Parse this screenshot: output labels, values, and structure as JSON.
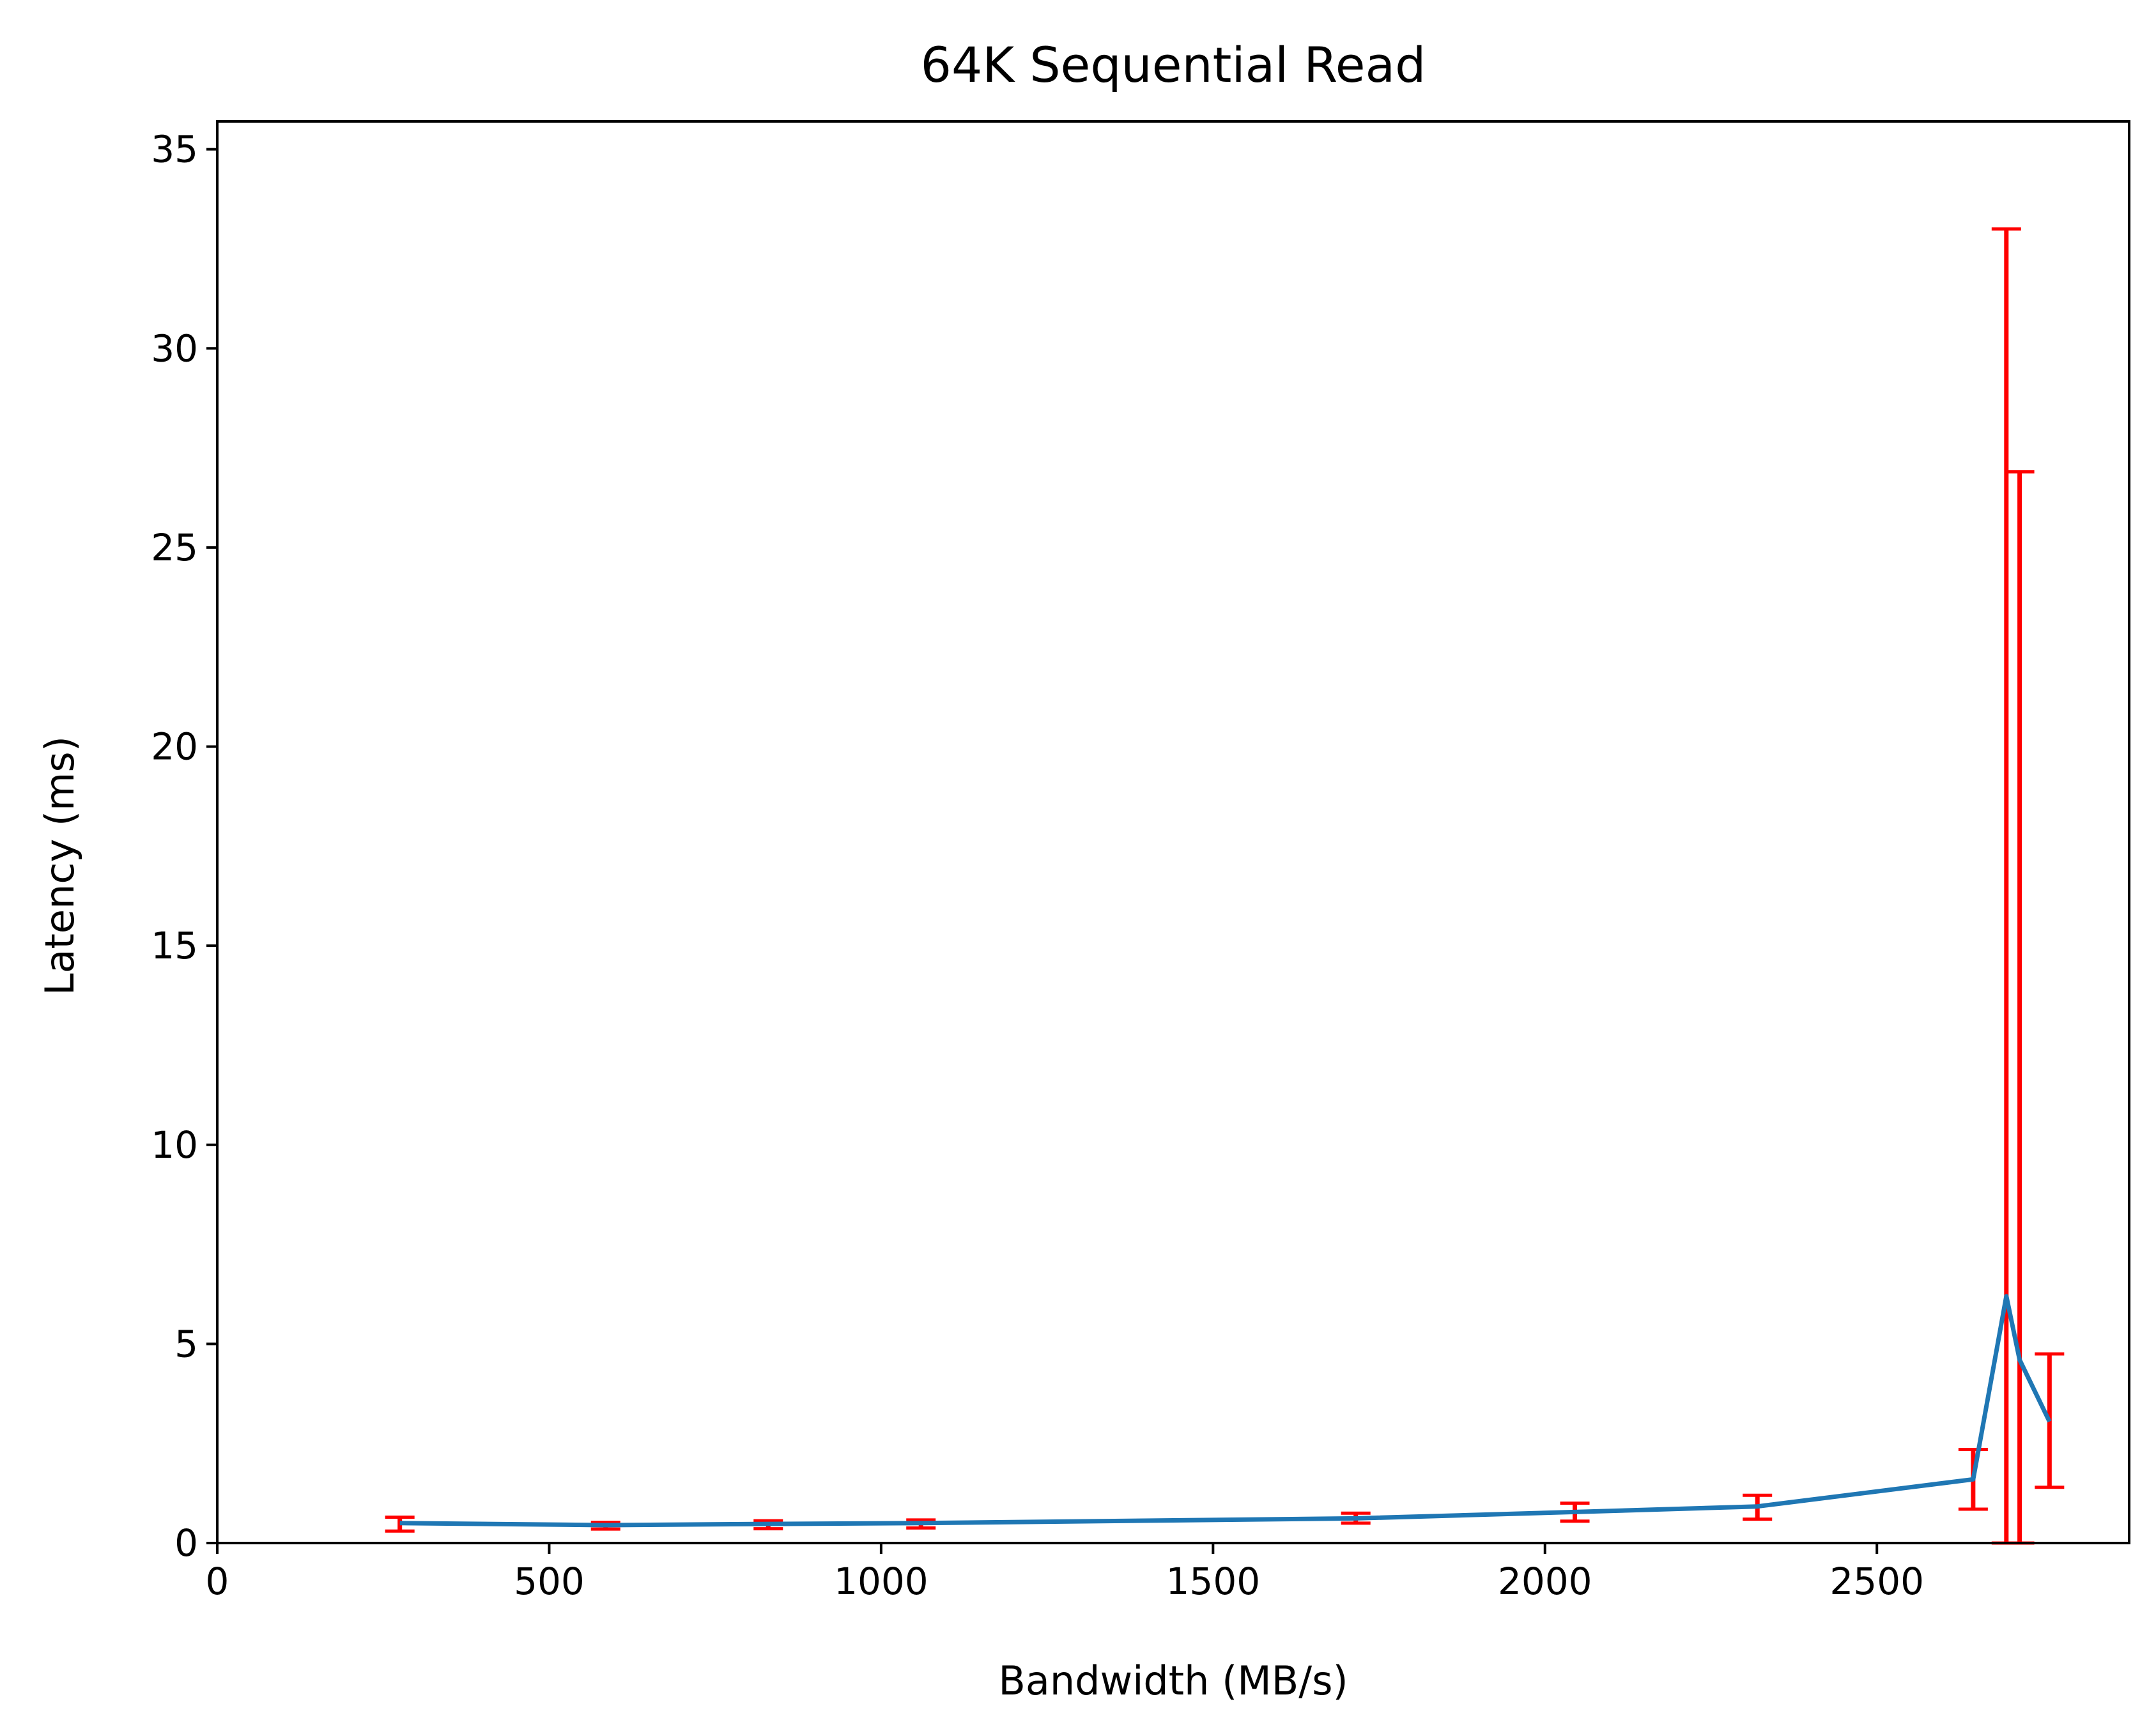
{
  "chart_data": {
    "type": "line",
    "title": "64K  Sequential Read",
    "xlabel": "Bandwidth (MB/s)",
    "ylabel": "Latency (ms)",
    "xlim": [
      0,
      2880
    ],
    "ylim": [
      0,
      35.7
    ],
    "xticks": [
      0,
      500,
      1000,
      1500,
      2000,
      2500
    ],
    "yticks": [
      0,
      5,
      10,
      15,
      20,
      25,
      30,
      35
    ],
    "grid": false,
    "line_color": "#1f77b4",
    "errorbar_color": "#ff0000",
    "series": [
      {
        "x": [
          275,
          585,
          830,
          1060,
          1715,
          2045,
          2320,
          2645,
          2695,
          2715,
          2760
        ],
        "y": [
          0.5,
          0.45,
          0.48,
          0.5,
          0.62,
          0.78,
          0.92,
          1.6,
          6.2,
          4.6,
          3.05
        ],
        "err_low": [
          0.3,
          0.35,
          0.36,
          0.38,
          0.5,
          0.55,
          0.6,
          0.85,
          0,
          0,
          1.4
        ],
        "err_high": [
          0.65,
          0.52,
          0.56,
          0.58,
          0.75,
          1.0,
          1.2,
          2.35,
          33.0,
          26.9,
          4.75
        ]
      }
    ]
  }
}
